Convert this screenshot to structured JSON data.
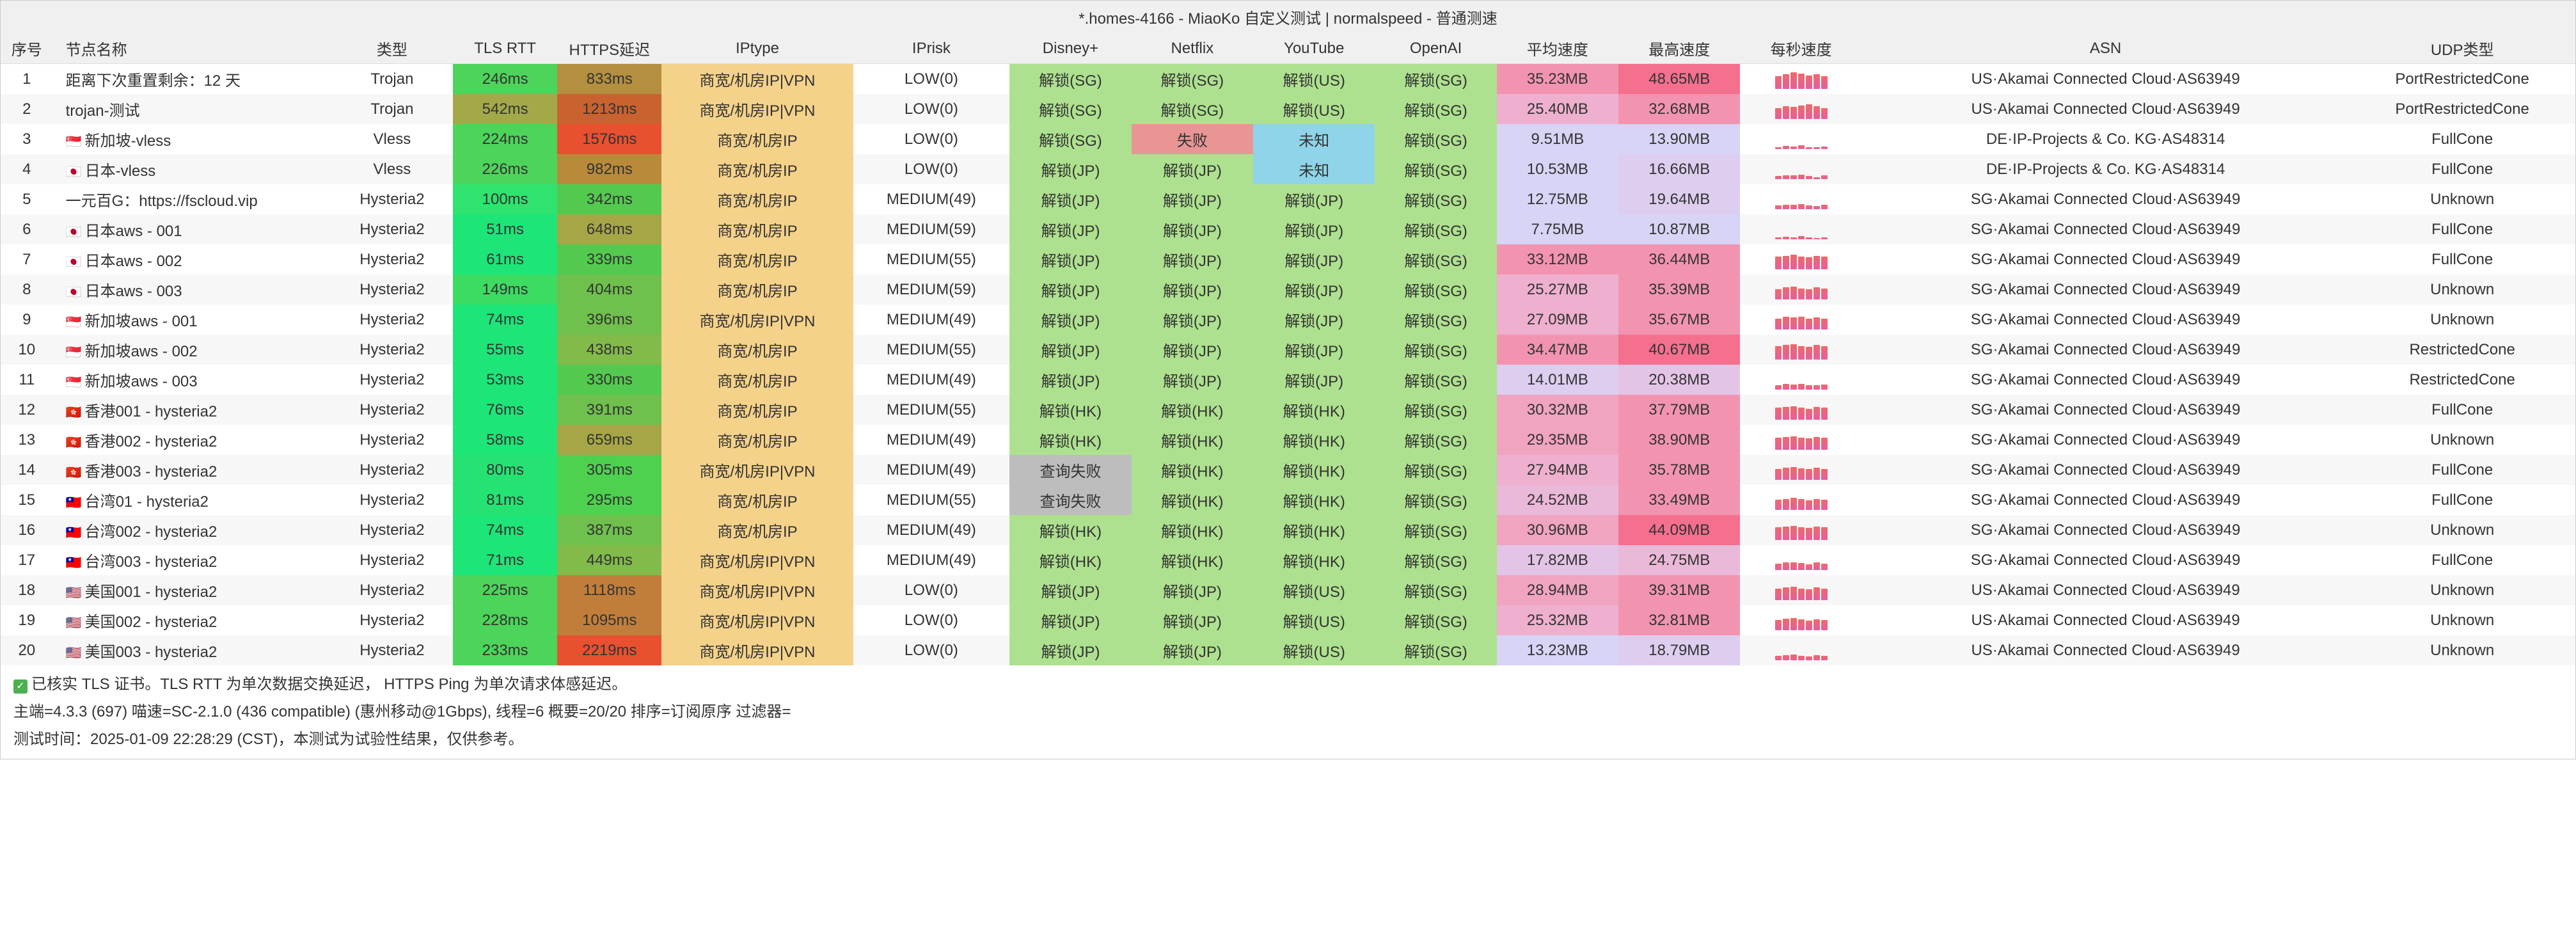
{
  "title": "*.homes-4166 - MiaoKo 自定义测试 | normalspeed - 普通测速",
  "headers": [
    "序号",
    "节点名称",
    "类型",
    "TLS RTT",
    "HTTPS延迟",
    "IPtype",
    "IPrisk",
    "Disney+",
    "Netflix",
    "YouTube",
    "OpenAI",
    "平均速度",
    "最高速度",
    "每秒速度",
    "ASN",
    "UDP类型"
  ],
  "colors": {
    "rtt": {
      "fast": "#2fe36e",
      "med": "#5dc95a",
      "slow": "#7fb04d",
      "vslow": "#a3a948"
    },
    "https": {
      "lt400": "#54c94f",
      "lt500": "#82bb4a",
      "lt700": "#a6a647",
      "lt900": "#b38f3f",
      "lt1100": "#c17e3a",
      "lt1300": "#b86f34",
      "gt1300": "#e85030"
    },
    "iptype": "#f5d28a",
    "unlock_ok": "#aee18f",
    "unlock_fail": "#e99595",
    "unlock_unknown": "#8fd4e8",
    "unlock_queryfail": "#bdbdbd",
    "speed_low": "#d7d4f5",
    "speed_mid": "#e8b8d6",
    "speed_high": "#f294b0",
    "speed_vhigh": "#f56f8e"
  },
  "rows": [
    {
      "idx": 1,
      "flag": "",
      "name": "距离下次重置剩余：12 天",
      "type": "Trojan",
      "rtt": "246ms",
      "rtt_c": "#4dd45a",
      "https": "833ms",
      "https_c": "#b38f3f",
      "iptype": "商宽/机房IP|VPN",
      "iprisk": "LOW(0)",
      "disney": "解锁(SG)",
      "disney_c": "#aee18f",
      "netflix": "解锁(SG)",
      "netflix_c": "#aee18f",
      "youtube": "解锁(US)",
      "youtube_c": "#aee18f",
      "openai": "解锁(SG)",
      "openai_c": "#aee18f",
      "avg": "35.23MB",
      "avg_c": "#f294b0",
      "max": "48.65MB",
      "max_c": "#f56f8e",
      "spark": [
        70,
        80,
        90,
        85,
        75,
        80,
        70
      ],
      "asn": "US·Akamai Connected Cloud·AS63949",
      "udp": "PortRestrictedCone"
    },
    {
      "idx": 2,
      "flag": "",
      "name": "trojan-测试",
      "type": "Trojan",
      "rtt": "542ms",
      "rtt_c": "#a3a948",
      "https": "1213ms",
      "https_c": "#c9622f",
      "iptype": "商宽/机房IP|VPN",
      "iprisk": "LOW(0)",
      "disney": "解锁(SG)",
      "disney_c": "#aee18f",
      "netflix": "解锁(SG)",
      "netflix_c": "#aee18f",
      "youtube": "解锁(US)",
      "youtube_c": "#aee18f",
      "openai": "解锁(SG)",
      "openai_c": "#aee18f",
      "avg": "25.40MB",
      "avg_c": "#eeb0ce",
      "max": "32.68MB",
      "max_c": "#f294b0",
      "spark": [
        60,
        70,
        65,
        75,
        80,
        70,
        60
      ],
      "asn": "US·Akamai Connected Cloud·AS63949",
      "udp": "PortRestrictedCone"
    },
    {
      "idx": 3,
      "flag": "🇸🇬",
      "name": "新加坡-vless",
      "type": "Vless",
      "rtt": "224ms",
      "rtt_c": "#4dd45a",
      "https": "1576ms",
      "https_c": "#e85030",
      "iptype": "商宽/机房IP",
      "iprisk": "LOW(0)",
      "disney": "解锁(SG)",
      "disney_c": "#aee18f",
      "netflix": "失败",
      "netflix_c": "#e99595",
      "youtube": "未知",
      "youtube_c": "#8fd4e8",
      "openai": "解锁(SG)",
      "openai_c": "#aee18f",
      "avg": "9.51MB",
      "avg_c": "#d7d4f5",
      "max": "13.90MB",
      "max_c": "#d7d4f5",
      "spark": [
        10,
        15,
        12,
        18,
        10,
        8,
        14
      ],
      "asn": "DE·IP-Projects & Co. KG·AS48314",
      "udp": "FullCone"
    },
    {
      "idx": 4,
      "flag": "🇯🇵",
      "name": "日本-vless",
      "type": "Vless",
      "rtt": "226ms",
      "rtt_c": "#4dd45a",
      "https": "982ms",
      "https_c": "#b88a3a",
      "iptype": "商宽/机房IP",
      "iprisk": "LOW(0)",
      "disney": "解锁(JP)",
      "disney_c": "#aee18f",
      "netflix": "解锁(JP)",
      "netflix_c": "#aee18f",
      "youtube": "未知",
      "youtube_c": "#8fd4e8",
      "openai": "解锁(SG)",
      "openai_c": "#aee18f",
      "avg": "10.53MB",
      "avg_c": "#d7d4f5",
      "max": "16.66MB",
      "max_c": "#ddcef0",
      "spark": [
        15,
        20,
        18,
        22,
        15,
        10,
        18
      ],
      "asn": "DE·IP-Projects & Co. KG·AS48314",
      "udp": "FullCone"
    },
    {
      "idx": 5,
      "flag": "",
      "name": "一元百G：https://fscloud.vip",
      "type": "Hysteria2",
      "rtt": "100ms",
      "rtt_c": "#2fe36e",
      "https": "342ms",
      "https_c": "#54c94f",
      "iptype": "商宽/机房IP",
      "iprisk": "MEDIUM(49)",
      "disney": "解锁(JP)",
      "disney_c": "#aee18f",
      "netflix": "解锁(JP)",
      "netflix_c": "#aee18f",
      "youtube": "解锁(JP)",
      "youtube_c": "#aee18f",
      "openai": "解锁(SG)",
      "openai_c": "#aee18f",
      "avg": "12.75MB",
      "avg_c": "#d7d4f5",
      "max": "19.64MB",
      "max_c": "#ddcef0",
      "spark": [
        20,
        25,
        22,
        28,
        20,
        15,
        22
      ],
      "asn": "SG·Akamai Connected Cloud·AS63949",
      "udp": "Unknown"
    },
    {
      "idx": 6,
      "flag": "🇯🇵",
      "name": "日本aws - 001",
      "type": "Hysteria2",
      "rtt": "51ms",
      "rtt_c": "#1de578",
      "https": "648ms",
      "https_c": "#a6a647",
      "iptype": "商宽/机房IP",
      "iprisk": "MEDIUM(59)",
      "disney": "解锁(JP)",
      "disney_c": "#aee18f",
      "netflix": "解锁(JP)",
      "netflix_c": "#aee18f",
      "youtube": "解锁(JP)",
      "youtube_c": "#aee18f",
      "openai": "解锁(SG)",
      "openai_c": "#aee18f",
      "avg": "7.75MB",
      "avg_c": "#d7d4f5",
      "max": "10.87MB",
      "max_c": "#d7d4f5",
      "spark": [
        8,
        12,
        10,
        15,
        8,
        6,
        10
      ],
      "asn": "SG·Akamai Connected Cloud·AS63949",
      "udp": "FullCone"
    },
    {
      "idx": 7,
      "flag": "🇯🇵",
      "name": "日本aws - 002",
      "type": "Hysteria2",
      "rtt": "61ms",
      "rtt_c": "#1de578",
      "https": "339ms",
      "https_c": "#54c94f",
      "iptype": "商宽/机房IP",
      "iprisk": "MEDIUM(55)",
      "disney": "解锁(JP)",
      "disney_c": "#aee18f",
      "netflix": "解锁(JP)",
      "netflix_c": "#aee18f",
      "youtube": "解锁(JP)",
      "youtube_c": "#aee18f",
      "openai": "解锁(SG)",
      "openai_c": "#aee18f",
      "avg": "33.12MB",
      "avg_c": "#f294b0",
      "max": "36.44MB",
      "max_c": "#f294b0",
      "spark": [
        70,
        75,
        80,
        70,
        65,
        75,
        70
      ],
      "asn": "SG·Akamai Connected Cloud·AS63949",
      "udp": "FullCone"
    },
    {
      "idx": 8,
      "flag": "🇯🇵",
      "name": "日本aws - 003",
      "type": "Hysteria2",
      "rtt": "149ms",
      "rtt_c": "#3cdb62",
      "https": "404ms",
      "https_c": "#6fc04d",
      "iptype": "商宽/机房IP",
      "iprisk": "MEDIUM(59)",
      "disney": "解锁(JP)",
      "disney_c": "#aee18f",
      "netflix": "解锁(JP)",
      "netflix_c": "#aee18f",
      "youtube": "解锁(JP)",
      "youtube_c": "#aee18f",
      "openai": "解锁(SG)",
      "openai_c": "#aee18f",
      "avg": "25.27MB",
      "avg_c": "#eeb0ce",
      "max": "35.39MB",
      "max_c": "#f294b0",
      "spark": [
        55,
        65,
        70,
        60,
        55,
        65,
        60
      ],
      "asn": "SG·Akamai Connected Cloud·AS63949",
      "udp": "Unknown"
    },
    {
      "idx": 9,
      "flag": "🇸🇬",
      "name": "新加坡aws - 001",
      "type": "Hysteria2",
      "rtt": "74ms",
      "rtt_c": "#1de578",
      "https": "396ms",
      "https_c": "#6fc04d",
      "iptype": "商宽/机房IP|VPN",
      "iprisk": "MEDIUM(49)",
      "disney": "解锁(JP)",
      "disney_c": "#aee18f",
      "netflix": "解锁(JP)",
      "netflix_c": "#aee18f",
      "youtube": "解锁(JP)",
      "youtube_c": "#aee18f",
      "openai": "解锁(SG)",
      "openai_c": "#aee18f",
      "avg": "27.09MB",
      "avg_c": "#eeb0ce",
      "max": "35.67MB",
      "max_c": "#f294b0",
      "spark": [
        60,
        70,
        65,
        70,
        60,
        65,
        60
      ],
      "asn": "SG·Akamai Connected Cloud·AS63949",
      "udp": "Unknown"
    },
    {
      "idx": 10,
      "flag": "🇸🇬",
      "name": "新加坡aws - 002",
      "type": "Hysteria2",
      "rtt": "55ms",
      "rtt_c": "#1de578",
      "https": "438ms",
      "https_c": "#82bb4a",
      "iptype": "商宽/机房IP",
      "iprisk": "MEDIUM(55)",
      "disney": "解锁(JP)",
      "disney_c": "#aee18f",
      "netflix": "解锁(JP)",
      "netflix_c": "#aee18f",
      "youtube": "解锁(JP)",
      "youtube_c": "#aee18f",
      "openai": "解锁(SG)",
      "openai_c": "#aee18f",
      "avg": "34.47MB",
      "avg_c": "#f294b0",
      "max": "40.67MB",
      "max_c": "#f56f8e",
      "spark": [
        75,
        80,
        85,
        75,
        70,
        80,
        75
      ],
      "asn": "SG·Akamai Connected Cloud·AS63949",
      "udp": "RestrictedCone"
    },
    {
      "idx": 11,
      "flag": "🇸🇬",
      "name": "新加坡aws - 003",
      "type": "Hysteria2",
      "rtt": "53ms",
      "rtt_c": "#1de578",
      "https": "330ms",
      "https_c": "#54c94f",
      "iptype": "商宽/机房IP",
      "iprisk": "MEDIUM(49)",
      "disney": "解锁(JP)",
      "disney_c": "#aee18f",
      "netflix": "解锁(JP)",
      "netflix_c": "#aee18f",
      "youtube": "解锁(JP)",
      "youtube_c": "#aee18f",
      "openai": "解锁(SG)",
      "openai_c": "#aee18f",
      "avg": "14.01MB",
      "avg_c": "#ddcef0",
      "max": "20.38MB",
      "max_c": "#e3c4e6",
      "spark": [
        25,
        30,
        28,
        32,
        25,
        22,
        28
      ],
      "asn": "SG·Akamai Connected Cloud·AS63949",
      "udp": "RestrictedCone"
    },
    {
      "idx": 12,
      "flag": "🇭🇰",
      "name": "香港001 - hysteria2",
      "type": "Hysteria2",
      "rtt": "76ms",
      "rtt_c": "#1de578",
      "https": "391ms",
      "https_c": "#6fc04d",
      "iptype": "商宽/机房IP",
      "iprisk": "MEDIUM(55)",
      "disney": "解锁(HK)",
      "disney_c": "#aee18f",
      "netflix": "解锁(HK)",
      "netflix_c": "#aee18f",
      "youtube": "解锁(HK)",
      "youtube_c": "#aee18f",
      "openai": "解锁(SG)",
      "openai_c": "#aee18f",
      "avg": "30.32MB",
      "avg_c": "#f0a4c0",
      "max": "37.79MB",
      "max_c": "#f294b0",
      "spark": [
        65,
        70,
        75,
        65,
        60,
        70,
        65
      ],
      "asn": "SG·Akamai Connected Cloud·AS63949",
      "udp": "FullCone"
    },
    {
      "idx": 13,
      "flag": "🇭🇰",
      "name": "香港002 - hysteria2",
      "type": "Hysteria2",
      "rtt": "58ms",
      "rtt_c": "#1de578",
      "https": "659ms",
      "https_c": "#a6a647",
      "iptype": "商宽/机房IP",
      "iprisk": "MEDIUM(49)",
      "disney": "解锁(HK)",
      "disney_c": "#aee18f",
      "netflix": "解锁(HK)",
      "netflix_c": "#aee18f",
      "youtube": "解锁(HK)",
      "youtube_c": "#aee18f",
      "openai": "解锁(SG)",
      "openai_c": "#aee18f",
      "avg": "29.35MB",
      "avg_c": "#f0a4c0",
      "max": "38.90MB",
      "max_c": "#f294b0",
      "spark": [
        65,
        70,
        72,
        65,
        62,
        70,
        65
      ],
      "asn": "SG·Akamai Connected Cloud·AS63949",
      "udp": "Unknown"
    },
    {
      "idx": 14,
      "flag": "🇭🇰",
      "name": "香港003 - hysteria2",
      "type": "Hysteria2",
      "rtt": "80ms",
      "rtt_c": "#25e372",
      "https": "305ms",
      "https_c": "#4dd14f",
      "iptype": "商宽/机房IP|VPN",
      "iprisk": "MEDIUM(49)",
      "disney": "查询失败",
      "disney_c": "#bdbdbd",
      "netflix": "解锁(HK)",
      "netflix_c": "#aee18f",
      "youtube": "解锁(HK)",
      "youtube_c": "#aee18f",
      "openai": "解锁(SG)",
      "openai_c": "#aee18f",
      "avg": "27.94MB",
      "avg_c": "#eeb0ce",
      "max": "35.78MB",
      "max_c": "#f294b0",
      "spark": [
        60,
        65,
        70,
        62,
        58,
        65,
        60
      ],
      "asn": "SG·Akamai Connected Cloud·AS63949",
      "udp": "FullCone"
    },
    {
      "idx": 15,
      "flag": "🇹🇼",
      "name": "台湾01 - hysteria2",
      "type": "Hysteria2",
      "rtt": "81ms",
      "rtt_c": "#25e372",
      "https": "295ms",
      "https_c": "#4dd14f",
      "iptype": "商宽/机房IP",
      "iprisk": "MEDIUM(55)",
      "disney": "查询失败",
      "disney_c": "#bdbdbd",
      "netflix": "解锁(HK)",
      "netflix_c": "#aee18f",
      "youtube": "解锁(HK)",
      "youtube_c": "#aee18f",
      "openai": "解锁(SG)",
      "openai_c": "#aee18f",
      "avg": "24.52MB",
      "avg_c": "#eab8d8",
      "max": "33.49MB",
      "max_c": "#f294b0",
      "spark": [
        55,
        60,
        65,
        58,
        52,
        60,
        55
      ],
      "asn": "SG·Akamai Connected Cloud·AS63949",
      "udp": "FullCone"
    },
    {
      "idx": 16,
      "flag": "🇹🇼",
      "name": "台湾002 - hysteria2",
      "type": "Hysteria2",
      "rtt": "74ms",
      "rtt_c": "#1de578",
      "https": "387ms",
      "https_c": "#6fc04d",
      "iptype": "商宽/机房IP",
      "iprisk": "MEDIUM(49)",
      "disney": "解锁(HK)",
      "disney_c": "#aee18f",
      "netflix": "解锁(HK)",
      "netflix_c": "#aee18f",
      "youtube": "解锁(HK)",
      "youtube_c": "#aee18f",
      "openai": "解锁(SG)",
      "openai_c": "#aee18f",
      "avg": "30.96MB",
      "avg_c": "#f0a4c0",
      "max": "44.09MB",
      "max_c": "#f56f8e",
      "spark": [
        68,
        72,
        78,
        70,
        65,
        74,
        70
      ],
      "asn": "SG·Akamai Connected Cloud·AS63949",
      "udp": "Unknown"
    },
    {
      "idx": 17,
      "flag": "🇹🇼",
      "name": "台湾003 - hysteria2",
      "type": "Hysteria2",
      "rtt": "71ms",
      "rtt_c": "#1de578",
      "https": "449ms",
      "https_c": "#82bb4a",
      "iptype": "商宽/机房IP|VPN",
      "iprisk": "MEDIUM(49)",
      "disney": "解锁(HK)",
      "disney_c": "#aee18f",
      "netflix": "解锁(HK)",
      "netflix_c": "#aee18f",
      "youtube": "解锁(HK)",
      "youtube_c": "#aee18f",
      "openai": "解锁(SG)",
      "openai_c": "#aee18f",
      "avg": "17.82MB",
      "avg_c": "#e3c4e6",
      "max": "24.75MB",
      "max_c": "#eab8d8",
      "spark": [
        35,
        40,
        42,
        38,
        32,
        40,
        35
      ],
      "asn": "SG·Akamai Connected Cloud·AS63949",
      "udp": "FullCone"
    },
    {
      "idx": 18,
      "flag": "🇺🇸",
      "name": "美国001 - hysteria2",
      "type": "Hysteria2",
      "rtt": "225ms",
      "rtt_c": "#4dd45a",
      "https": "1118ms",
      "https_c": "#c17e3a",
      "iptype": "商宽/机房IP|VPN",
      "iprisk": "LOW(0)",
      "disney": "解锁(JP)",
      "disney_c": "#aee18f",
      "netflix": "解锁(JP)",
      "netflix_c": "#aee18f",
      "youtube": "解锁(US)",
      "youtube_c": "#aee18f",
      "openai": "解锁(SG)",
      "openai_c": "#aee18f",
      "avg": "28.94MB",
      "avg_c": "#f0a4c0",
      "max": "39.31MB",
      "max_c": "#f294b0",
      "spark": [
        62,
        68,
        72,
        64,
        60,
        68,
        62
      ],
      "asn": "US·Akamai Connected Cloud·AS63949",
      "udp": "Unknown"
    },
    {
      "idx": 19,
      "flag": "🇺🇸",
      "name": "美国002 - hysteria2",
      "type": "Hysteria2",
      "rtt": "228ms",
      "rtt_c": "#4dd45a",
      "https": "1095ms",
      "https_c": "#c17e3a",
      "iptype": "商宽/机房IP|VPN",
      "iprisk": "LOW(0)",
      "disney": "解锁(JP)",
      "disney_c": "#aee18f",
      "netflix": "解锁(JP)",
      "netflix_c": "#aee18f",
      "youtube": "解锁(US)",
      "youtube_c": "#aee18f",
      "openai": "解锁(SG)",
      "openai_c": "#aee18f",
      "avg": "25.32MB",
      "avg_c": "#eeb0ce",
      "max": "32.81MB",
      "max_c": "#f294b0",
      "spark": [
        55,
        62,
        65,
        58,
        52,
        60,
        55
      ],
      "asn": "US·Akamai Connected Cloud·AS63949",
      "udp": "Unknown"
    },
    {
      "idx": 20,
      "flag": "🇺🇸",
      "name": "美国003 - hysteria2",
      "type": "Hysteria2",
      "rtt": "233ms",
      "rtt_c": "#4dd45a",
      "https": "2219ms",
      "https_c": "#e85030",
      "iptype": "商宽/机房IP|VPN",
      "iprisk": "LOW(0)",
      "disney": "解锁(JP)",
      "disney_c": "#aee18f",
      "netflix": "解锁(JP)",
      "netflix_c": "#aee18f",
      "youtube": "解锁(US)",
      "youtube_c": "#aee18f",
      "openai": "解锁(SG)",
      "openai_c": "#aee18f",
      "avg": "13.23MB",
      "avg_c": "#d7d4f5",
      "max": "18.79MB",
      "max_c": "#ddcef0",
      "spark": [
        22,
        28,
        30,
        24,
        20,
        26,
        22
      ],
      "asn": "US·Akamai Connected Cloud·AS63949",
      "udp": "Unknown"
    }
  ],
  "footer": {
    "line1": "已核实 TLS 证书。TLS RTT 为单次数据交换延迟， HTTPS Ping 为单次请求体感延迟。",
    "line2": "主端=4.3.3 (697) 喵速=SC-2.1.0 (436 compatible) (惠州移动@1Gbps), 线程=6 概要=20/20 排序=订阅原序 过滤器=",
    "line3": "测试时间：2025-01-09 22:28:29 (CST)，本测试为试验性结果，仅供参考。"
  }
}
